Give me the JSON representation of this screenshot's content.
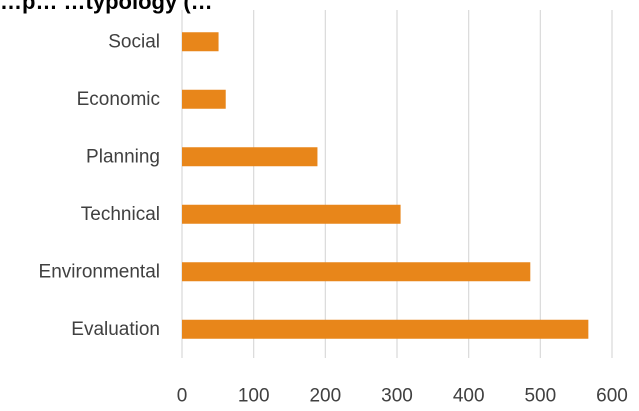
{
  "chart_data": {
    "type": "bar",
    "orientation": "horizontal",
    "title": "…p… …typology (…",
    "xlabel": "",
    "ylabel": "",
    "categories": [
      "Evaluation",
      "Environmental",
      "Technical",
      "Planning",
      "Economic",
      "Social"
    ],
    "values": [
      567,
      486,
      305,
      189,
      61,
      51
    ],
    "xlim": [
      0,
      600
    ],
    "xticks": [
      "0",
      "100",
      "200",
      "300",
      "400",
      "500",
      "600"
    ],
    "grid": true,
    "legend": "none",
    "bar_color": "#e8861a",
    "grid_color": "#d9d9d9",
    "label_color": "#404040"
  }
}
